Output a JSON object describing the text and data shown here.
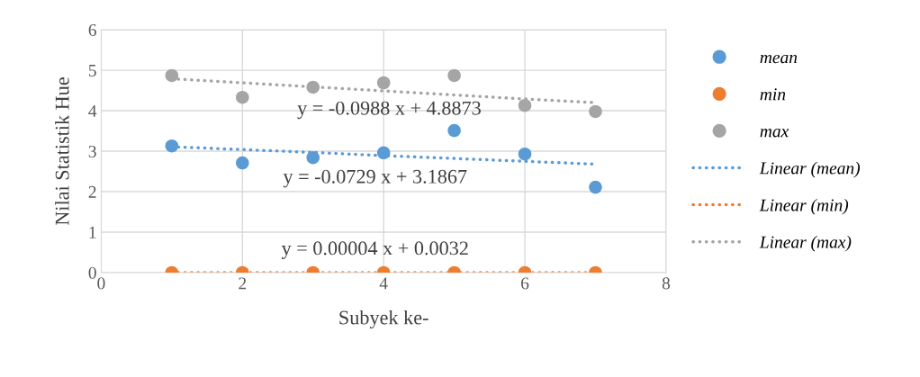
{
  "chart_data": {
    "type": "scatter",
    "xlabel": "Subyek ke-",
    "ylabel": "Nilai Statistik Hue",
    "xlim": [
      0,
      8
    ],
    "xticks": [
      0,
      2,
      4,
      6,
      8
    ],
    "ylim": [
      0,
      6
    ],
    "yticks": [
      0,
      1,
      2,
      3,
      4,
      5,
      6
    ],
    "grid": true,
    "legend": "right",
    "marker": "circle",
    "x": [
      1,
      2,
      3,
      4,
      5,
      6,
      7
    ],
    "series": [
      {
        "name": "mean",
        "color": "#5b9bd5",
        "values": [
          3.13,
          2.71,
          2.84,
          2.96,
          3.51,
          2.93,
          2.11
        ]
      },
      {
        "name": "min",
        "color": "#ed7d31",
        "values": [
          0,
          0,
          0,
          0,
          0,
          0,
          0
        ]
      },
      {
        "name": "max",
        "color": "#a5a5a5",
        "values": [
          4.87,
          4.33,
          4.58,
          4.69,
          4.87,
          4.13,
          3.98
        ]
      },
      {
        "name": "Linear (mean)",
        "type": "line",
        "line_style": "dotted",
        "marker": "none",
        "color": "#5b9bd5",
        "values": [
          3.11,
          3.04,
          2.97,
          2.89,
          2.82,
          2.75,
          2.68
        ]
      },
      {
        "name": "Linear (min)",
        "type": "line",
        "line_style": "dotted",
        "marker": "none",
        "color": "#ed7d31",
        "values": [
          0,
          0,
          0,
          0,
          0,
          0,
          0
        ]
      },
      {
        "name": "Linear (max)",
        "type": "line",
        "line_style": "dotted",
        "marker": "none",
        "color": "#a5a5a5",
        "values": [
          4.79,
          4.69,
          4.59,
          4.49,
          4.39,
          4.29,
          4.2
        ]
      }
    ],
    "annotations": [
      "y = -0.0988 x + 4.8873",
      "y = -0.0729 x + 3.1867",
      "y = 0.00004 x + 0.0032"
    ]
  }
}
